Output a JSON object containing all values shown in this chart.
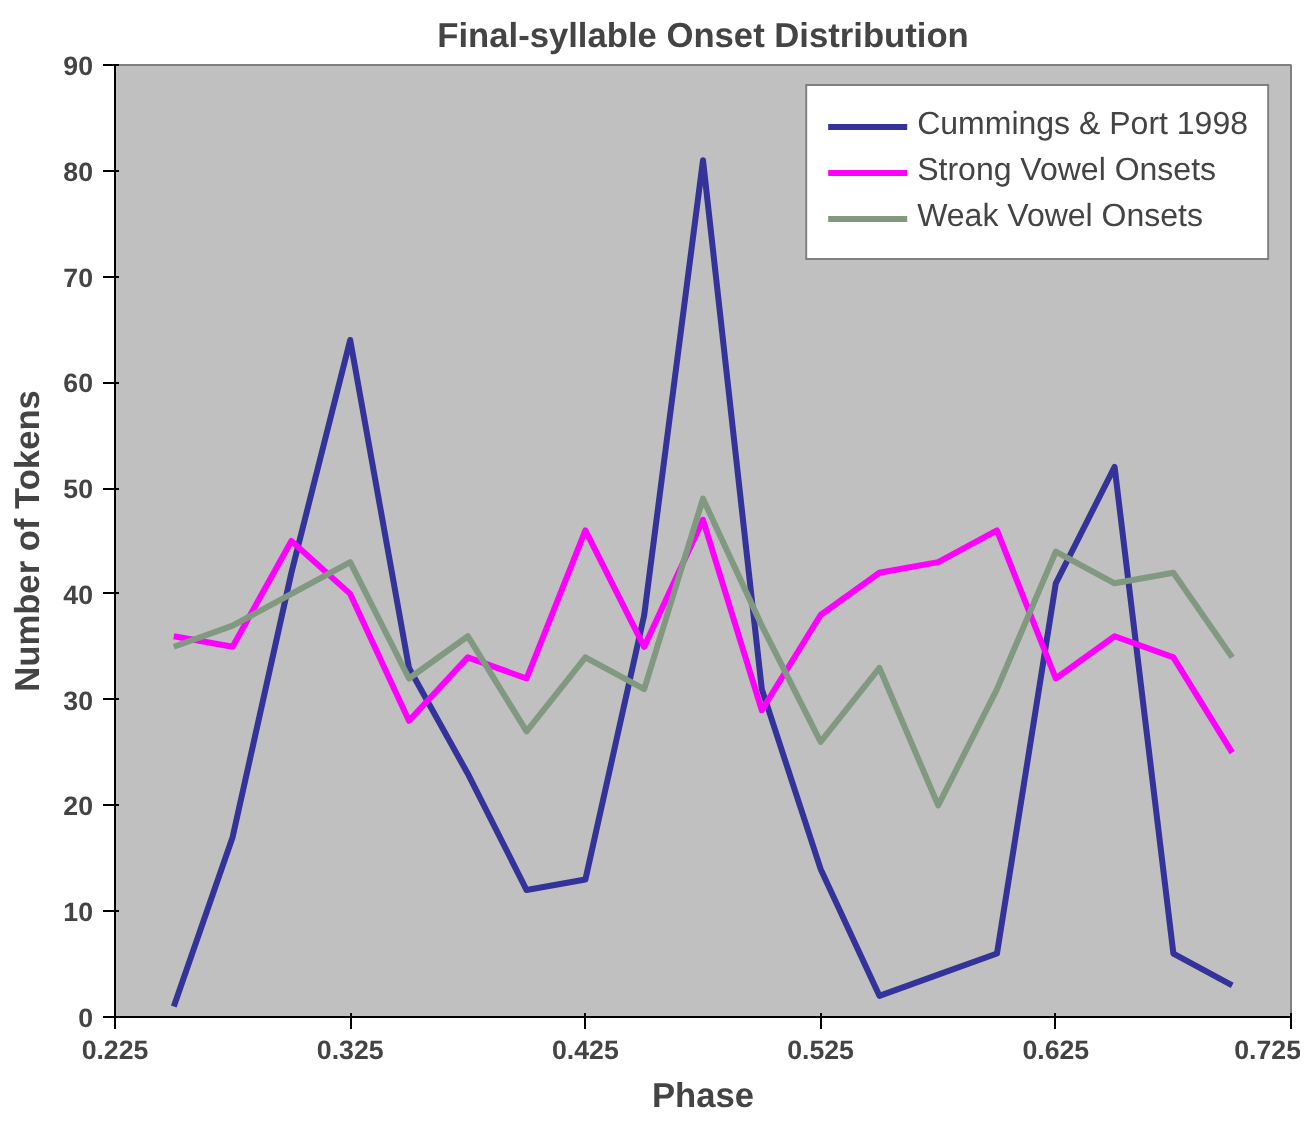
{
  "chart_data": {
    "type": "line",
    "title": "Final-syllable Onset Distribution",
    "xlabel": "Phase",
    "ylabel": "Number of Tokens",
    "x": [
      0.25,
      0.275,
      0.3,
      0.325,
      0.35,
      0.375,
      0.4,
      0.425,
      0.45,
      0.475,
      0.5,
      0.525,
      0.55,
      0.575,
      0.6,
      0.625,
      0.65,
      0.675,
      0.7
    ],
    "series": [
      {
        "name": "Cummings & Port 1998",
        "color": "#333399",
        "values": [
          1,
          17,
          42,
          64,
          33,
          23,
          12,
          13,
          38,
          81,
          31,
          14,
          2,
          4,
          6,
          41,
          52,
          6,
          3
        ]
      },
      {
        "name": "Strong Vowel Onsets",
        "color": "#ff00ff",
        "values": [
          36,
          35,
          45,
          40,
          28,
          34,
          32,
          46,
          35,
          47,
          29,
          38,
          42,
          43,
          46,
          32,
          36,
          34,
          25
        ]
      },
      {
        "name": "Weak Vowel Onsets",
        "color": "#809980",
        "values": [
          35,
          37,
          40,
          43,
          32,
          36,
          27,
          34,
          31,
          49,
          37,
          26,
          33,
          20,
          31,
          44,
          41,
          42,
          34
        ]
      }
    ],
    "xlim": [
      0.225,
      0.725
    ],
    "xticks": [
      0.225,
      0.325,
      0.425,
      0.525,
      0.625,
      0.725
    ],
    "ylim": [
      0,
      90
    ],
    "yticks": [
      0,
      10,
      20,
      30,
      40,
      50,
      60,
      70,
      80,
      90
    ],
    "grid": false,
    "legend": "top right",
    "marker": "none",
    "line_style": "solid"
  }
}
